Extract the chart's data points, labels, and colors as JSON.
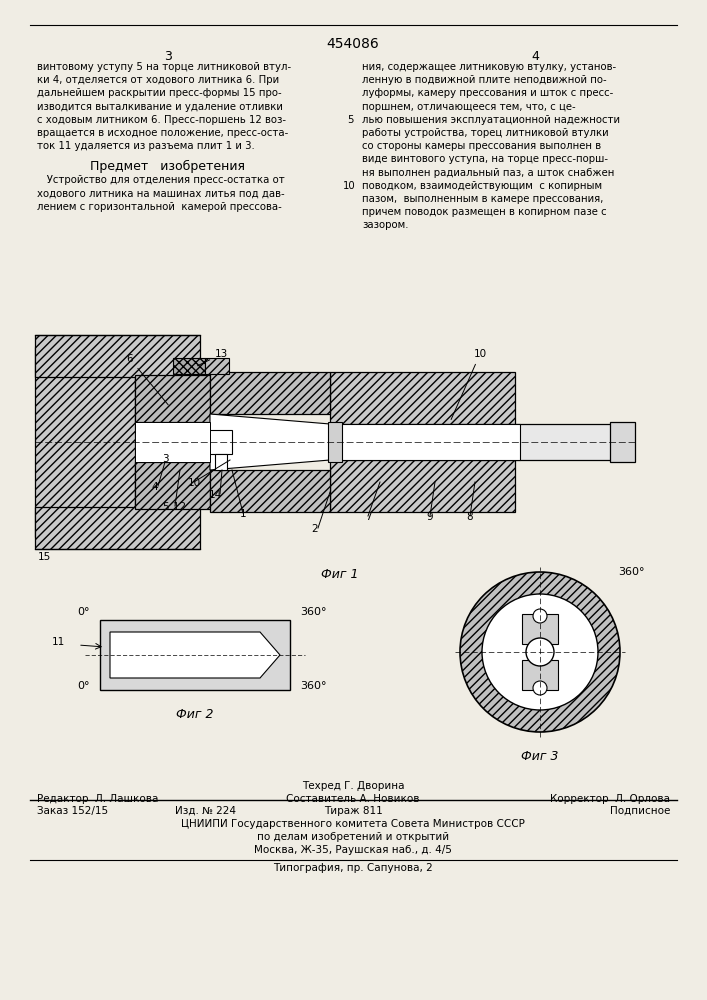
{
  "bg_color": "#f0ede4",
  "patent_number": "454086",
  "col_left": "3",
  "col_right": "4",
  "text_col1": [
    "винтовому уступу 5 на торце литниковой втул-",
    "ки 4, отделяется от ходового литника 6. При",
    "дальнейшем раскрытии пресс-формы 15 про-",
    "изводится выталкивание и удаление отливки",
    "с ходовым литником 6. Пресс-поршень 12 воз-",
    "вращается в исходное положение, пресс-оста-",
    "ток 11 удаляется из разъема плит 1 и 3."
  ],
  "subject_title": "Предмет   изобретения",
  "subject_text": [
    "   Устройство для отделения пресс-остатка от",
    "ходового литника на машинах литья под дав-",
    "лением с горизонтальной  камерой прессова-"
  ],
  "text_col2": [
    "ния, содержащее литниковую втулку, установ-",
    "ленную в подвижной плите неподвижной по-",
    "луформы, камеру прессования и шток с пресс-",
    "поршнем, отличающееся тем, что, с це-",
    "лью повышения эксплуатационной надежности",
    "работы устройства, торец литниковой втулки",
    "со стороны камеры прессования выполнен в",
    "виде винтового уступа, на торце пресс-порш-",
    "ня выполнен радиальный паз, а шток снабжен",
    "поводком, взаимодействующим  с копирным",
    "пазом,  выполненным в камере прессования,",
    "причем поводок размещен в копирном пазе с",
    "зазором."
  ],
  "fig1_cap": "Фиг 1",
  "fig2_cap": "Фиг 2",
  "fig3_cap": "Фиг 3",
  "editor": "Редактор  Л. Лашкова",
  "composer": "Составитель А. Новиков",
  "techred": "Техред Г. Дворина",
  "corrector": "Корректор  Л. Орлова",
  "zakaz": "Заказ 152/15",
  "izd": "Изд. № 224",
  "tirazh": "Тираж 811",
  "podpisnoe": "Подписное",
  "tsniip1": "ЦНИИПИ Государственного комитета Совета Министров СССР",
  "tsniip2": "по делам изобретений и открытий",
  "tsniip3": "Москва, Ж-35, Раушская наб., д. 4/5",
  "tipograf": "Типография, пр. Сапунова, 2"
}
